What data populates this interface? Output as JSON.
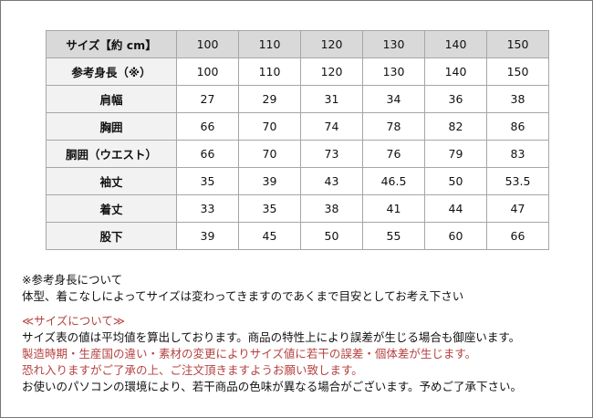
{
  "table": {
    "header": {
      "label": "サイズ【約 cm】",
      "sizes": [
        "100",
        "110",
        "120",
        "130",
        "140",
        "150"
      ]
    },
    "rows": [
      {
        "label": "参考身長（※）",
        "values": [
          "100",
          "110",
          "120",
          "130",
          "140",
          "150"
        ]
      },
      {
        "label": "肩幅",
        "values": [
          "27",
          "29",
          "31",
          "34",
          "36",
          "38"
        ]
      },
      {
        "label": "胸囲",
        "values": [
          "66",
          "70",
          "74",
          "78",
          "82",
          "86"
        ]
      },
      {
        "label": "胴囲（ウエスト）",
        "values": [
          "66",
          "70",
          "73",
          "76",
          "79",
          "83"
        ]
      },
      {
        "label": "袖丈",
        "values": [
          "35",
          "39",
          "43",
          "46.5",
          "50",
          "53.5"
        ]
      },
      {
        "label": "着丈",
        "values": [
          "33",
          "35",
          "38",
          "41",
          "44",
          "47"
        ]
      },
      {
        "label": "股下",
        "values": [
          "39",
          "45",
          "50",
          "55",
          "60",
          "66"
        ]
      }
    ]
  },
  "notes": {
    "height_title": "※参考身長について",
    "height_body": " 体型、着こなしによってサイズは変わってきますのであくまで目安としてお考え下さい",
    "size_title": "≪サイズについて≫",
    "line1": "サイズ表の値は平均値を算出しております。商品の特性上により誤差が生じる場合も御座います。",
    "line2": "製造時期・生産国の違い・素材の変更によりサイズ値に若干の誤差・個体差が生じます。",
    "line3": "恐れ入りますがご了承の上、ご注文頂きますようお願い致します。",
    "line4": "お使いのパソコンの環境により、若干商品の色味が異なる場合がございます。予めご了承下さい。"
  },
  "colors": {
    "accent_red": "#b5413f",
    "header_bg": "#d9d9d9",
    "label_bg": "#f2f2f2"
  }
}
